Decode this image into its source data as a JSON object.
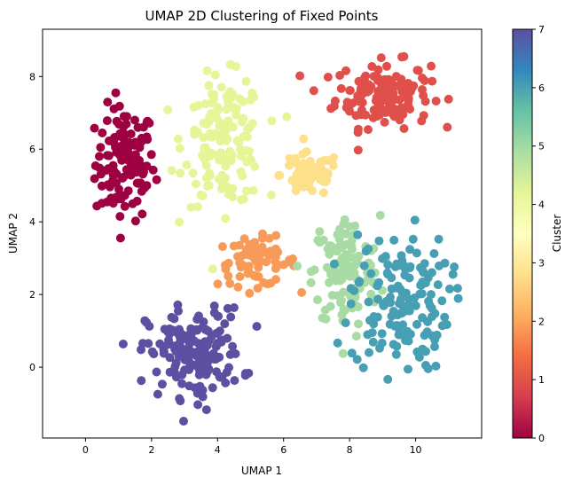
{
  "chart_data": {
    "type": "scatter",
    "title": "UMAP 2D Clustering of Fixed Points",
    "xlabel": "UMAP 1",
    "ylabel": "UMAP 2",
    "xlim": [
      -1.3,
      12.0
    ],
    "ylim": [
      -1.95,
      9.3
    ],
    "xticks": [
      0,
      2,
      4,
      6,
      8,
      10
    ],
    "yticks": [
      0,
      2,
      4,
      6,
      8
    ],
    "grid": false,
    "colormap": "Spectral",
    "colorbar": {
      "label": "Cluster",
      "range": [
        0,
        7
      ],
      "ticks": [
        0,
        1,
        2,
        3,
        4,
        5,
        6,
        7
      ],
      "stops": [
        "#9e0142",
        "#d53e4f",
        "#f46d43",
        "#fdae61",
        "#fee08b",
        "#ffffbf",
        "#e6f598",
        "#abdda4",
        "#66c2a5",
        "#3288bd",
        "#5e4fa2"
      ]
    },
    "clusters": [
      {
        "cluster": 0,
        "color": "#9e0142",
        "center": [
          1.2,
          5.6
        ],
        "spread": [
          0.75,
          1.3
        ],
        "n": 120
      },
      {
        "cluster": 1,
        "color": "#e04f4a",
        "center": [
          9.0,
          7.5
        ],
        "spread": [
          1.2,
          0.75
        ],
        "n": 150
      },
      {
        "cluster": 2,
        "color": "#f99b58",
        "center": [
          5.2,
          2.9
        ],
        "spread": [
          1.0,
          0.55
        ],
        "n": 70
      },
      {
        "cluster": 3,
        "color": "#fee08b",
        "center": [
          6.8,
          5.3
        ],
        "spread": [
          0.75,
          0.5
        ],
        "n": 65
      },
      {
        "cluster": 4,
        "color": "#e6f598",
        "center": [
          4.2,
          6.2
        ],
        "spread": [
          1.0,
          1.45
        ],
        "n": 150
      },
      {
        "cluster": 5,
        "color": "#a8dca4",
        "center": [
          7.9,
          2.6
        ],
        "spread": [
          0.85,
          1.3
        ],
        "n": 130
      },
      {
        "cluster": 6,
        "color": "#479fb4",
        "center": [
          9.5,
          1.8
        ],
        "spread": [
          1.25,
          1.6
        ],
        "n": 150
      },
      {
        "cluster": 7,
        "color": "#5e4fa2",
        "center": [
          3.3,
          0.4
        ],
        "spread": [
          1.2,
          1.0
        ],
        "n": 170
      }
    ]
  }
}
